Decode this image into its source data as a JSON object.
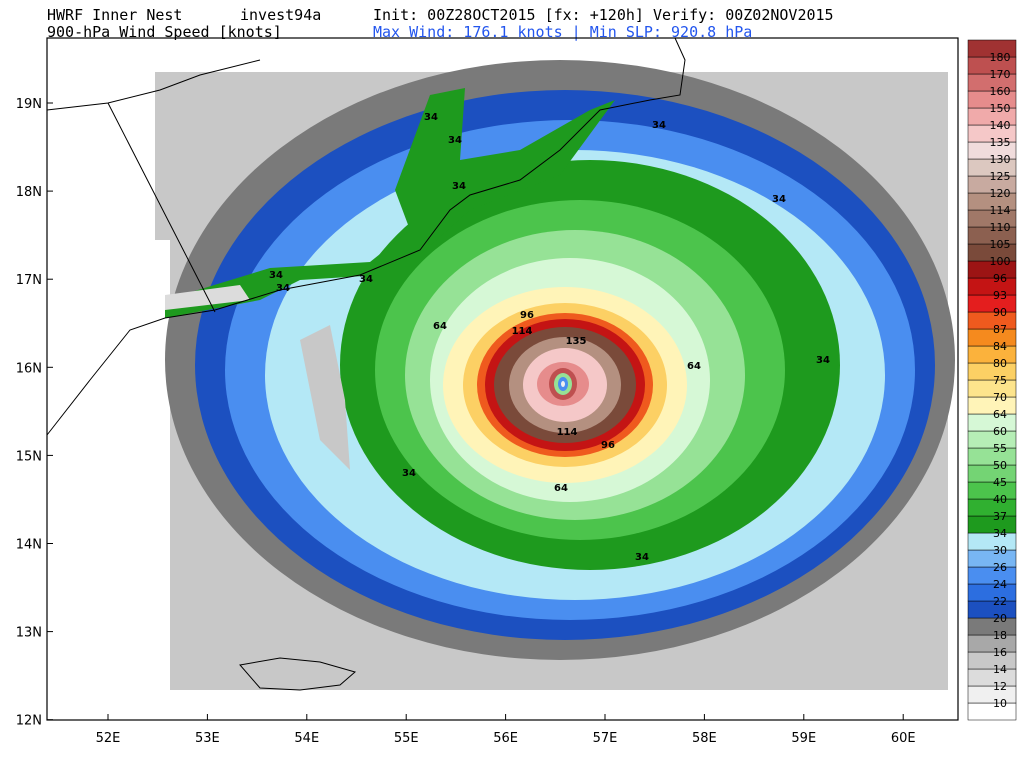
{
  "header": {
    "model": "HWRF Inner Nest",
    "storm": "invest94a",
    "times": "Init: 00Z28OCT2015 [fx: +120h] Verify: 00Z02NOV2015",
    "field": "900-hPa Wind Speed [knots]",
    "stats": "Max Wind: 176.1 knots | Min SLP: 920.8 hPa"
  },
  "lat_ticks": [
    "19N",
    "18N",
    "17N",
    "16N",
    "15N",
    "14N",
    "13N",
    "12N"
  ],
  "lon_ticks": [
    "52E",
    "53E",
    "54E",
    "55E",
    "56E",
    "57E",
    "58E",
    "59E",
    "60E"
  ],
  "colorbar": {
    "levels": [
      10,
      12,
      14,
      16,
      18,
      20,
      22,
      24,
      26,
      30,
      34,
      37,
      40,
      45,
      50,
      55,
      60,
      64,
      70,
      75,
      80,
      84,
      87,
      90,
      93,
      96,
      100,
      105,
      110,
      114,
      120,
      125,
      130,
      135,
      140,
      150,
      160,
      170,
      180
    ],
    "colors": [
      "#ffffff",
      "#f0f0f0",
      "#dcdcdc",
      "#c8c8c8",
      "#a8a8a8",
      "#7a7a7a",
      "#1c50c0",
      "#2c6ee0",
      "#4a8ef0",
      "#78b6f4",
      "#b4e8f6",
      "#1e9a1e",
      "#30b030",
      "#4cc44c",
      "#74d474",
      "#96e296",
      "#b6eeb6",
      "#d6f8d6",
      "#fff4b8",
      "#fde48c",
      "#fcd064",
      "#fbb23c",
      "#f58a1e",
      "#ef5a1e",
      "#e41e1e",
      "#c41414",
      "#9c1414",
      "#7a4a3a",
      "#8c6050",
      "#a07868",
      "#b49080",
      "#c8aaa0",
      "#dcc8c0",
      "#f0dcdc",
      "#f5c8c8",
      "#f0aaaa",
      "#e68c8c",
      "#d26e6e",
      "#be5050",
      "#a03232"
    ]
  },
  "contour_labels": [
    34,
    34,
    34,
    34,
    34,
    34,
    34,
    34,
    34,
    34,
    34,
    64,
    64,
    64,
    96,
    96,
    114,
    114,
    135
  ]
}
